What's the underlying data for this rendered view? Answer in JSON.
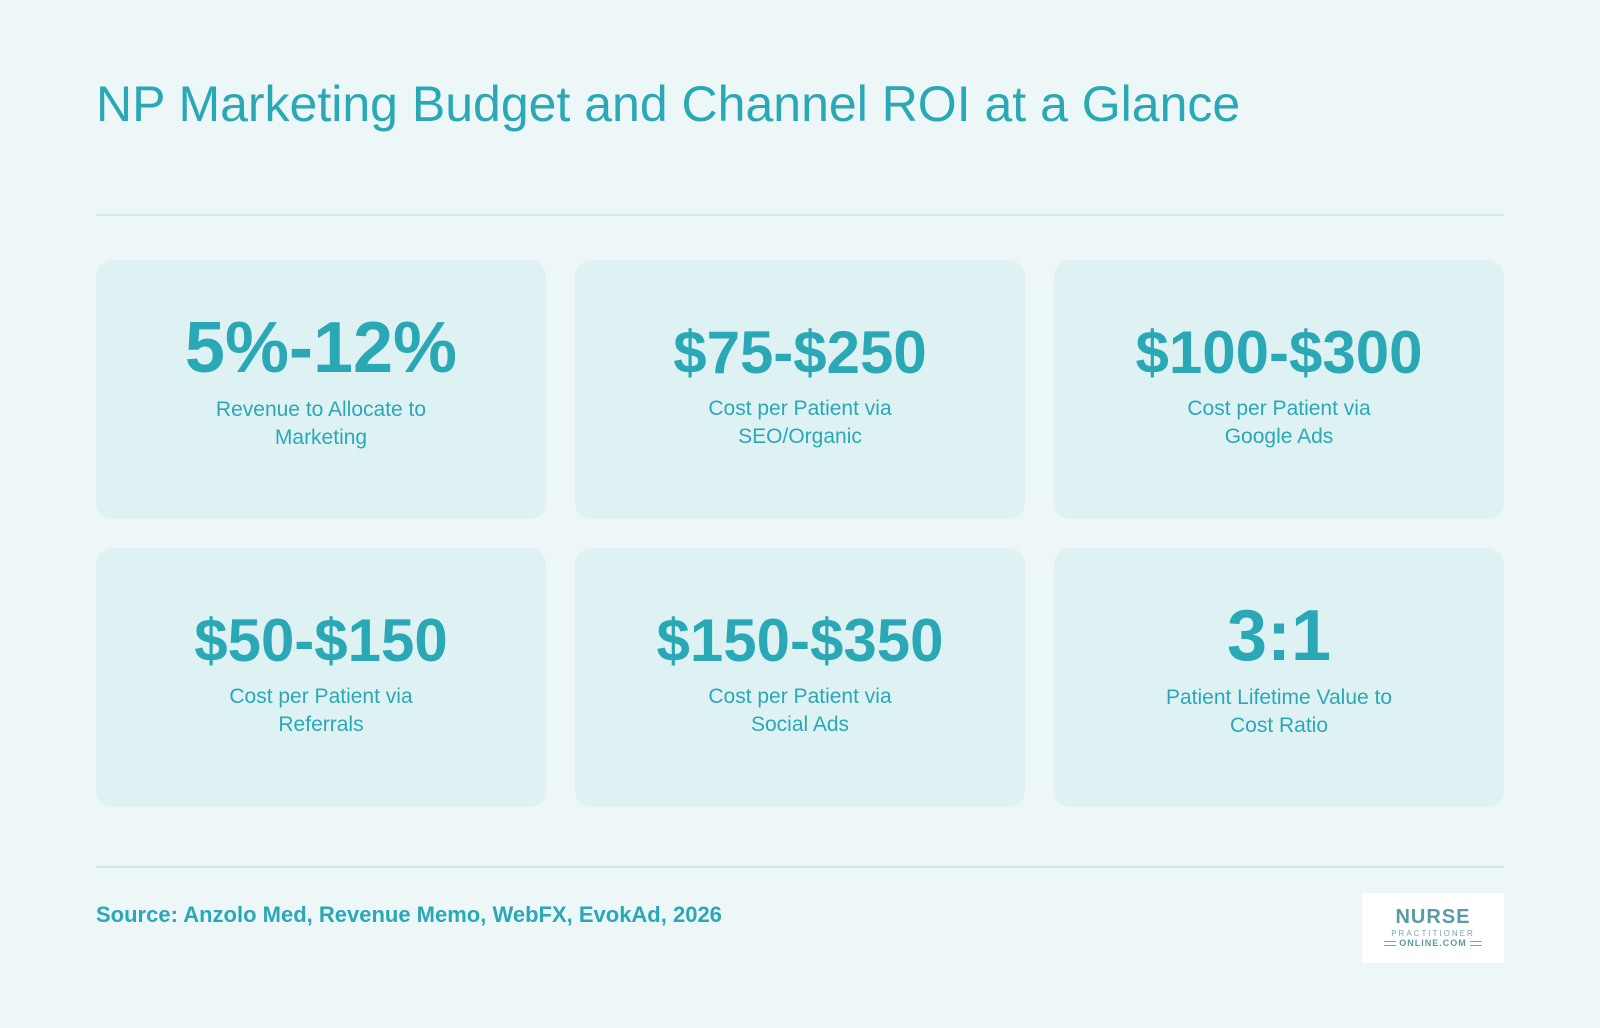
{
  "title": "NP Marketing Budget and Channel ROI at a Glance",
  "stats": [
    {
      "value": "5%-12%",
      "label_line1": "Revenue to Allocate to",
      "label_line2": "Marketing"
    },
    {
      "value": "$75-$250",
      "label_line1": "Cost per Patient via",
      "label_line2": "SEO/Organic"
    },
    {
      "value": "$100-$300",
      "label_line1": "Cost per Patient via",
      "label_line2": "Google Ads"
    },
    {
      "value": "$50-$150",
      "label_line1": "Cost per Patient via",
      "label_line2": "Referrals"
    },
    {
      "value": "$150-$350",
      "label_line1": "Cost per Patient via",
      "label_line2": "Social Ads"
    },
    {
      "value": "3:1",
      "label_line1": "Patient Lifetime Value to",
      "label_line2": "Cost Ratio"
    }
  ],
  "source": "Source: Anzolo Med, Revenue Memo, WebFX, EvokAd, 2026",
  "logo": {
    "main": "NURSE",
    "middle": "PRACTITIONER",
    "bottom": "ONLINE.COM"
  },
  "colors": {
    "background": "#eef7f8",
    "card": "#dff2f3",
    "accent": "#2ba8b6"
  }
}
